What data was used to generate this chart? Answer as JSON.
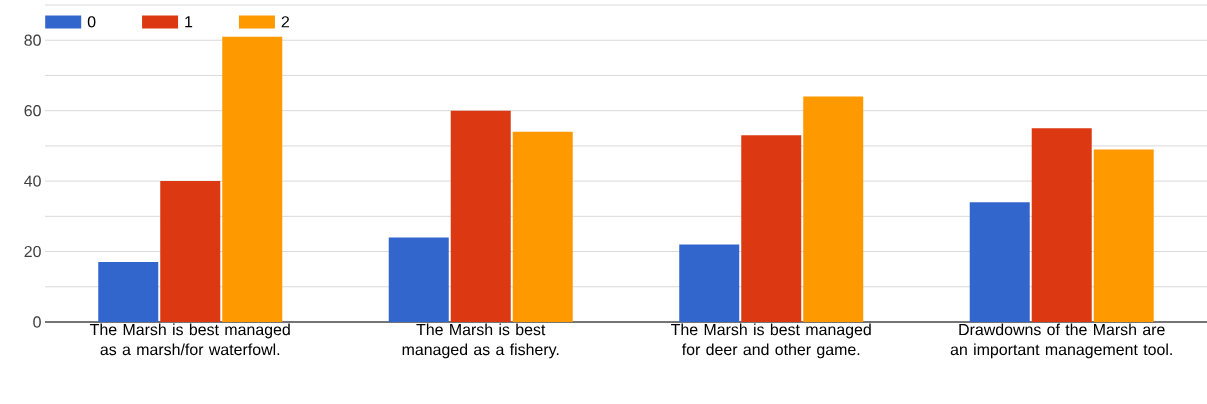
{
  "chart_data": {
    "type": "bar",
    "categories": [
      "The Marsh is best managed as a marsh/for waterfowl.",
      "The Marsh is best managed as a fishery.",
      "The Marsh is best managed for deer and other game.",
      "Drawdowns of the Marsh are an important management tool."
    ],
    "series": [
      {
        "name": "0",
        "color": "#3366cc",
        "values": [
          17,
          24,
          22,
          34
        ]
      },
      {
        "name": "1",
        "color": "#dc3912",
        "values": [
          40,
          60,
          53,
          55
        ]
      },
      {
        "name": "2",
        "color": "#ff9900",
        "values": [
          81,
          54,
          64,
          49
        ]
      }
    ],
    "ylim": [
      0,
      90
    ],
    "yticks": [
      0,
      {
        "value": 10,
        "label": null
      },
      20,
      {
        "value": 30,
        "label": null
      },
      40,
      {
        "value": 50,
        "label": null
      },
      60,
      {
        "value": 70,
        "label": null
      },
      80,
      {
        "value": 90,
        "label": null
      }
    ],
    "grid": "y",
    "legend": "top left"
  }
}
